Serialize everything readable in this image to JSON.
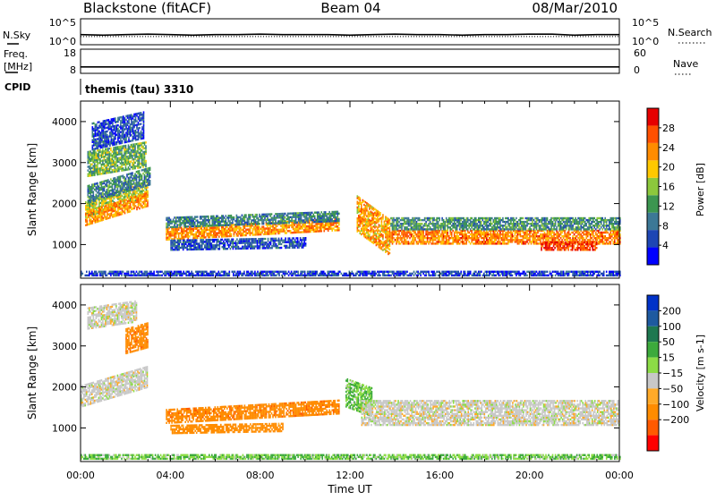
{
  "header": {
    "station": "Blackstone (fitACF)",
    "beam": "Beam 04",
    "date": "08/Mar/2010"
  },
  "cpid": {
    "label": "CPID",
    "text": "themis (tau) 3310"
  },
  "colors": {
    "power": [
      "#0000ff",
      "#1e46b4",
      "#3c7896",
      "#3c9650",
      "#8cc83c",
      "#ffc800",
      "#ff8c00",
      "#ff5000",
      "#e60000"
    ],
    "velocity": [
      "#ff0000",
      "#ff5a00",
      "#ff8c00",
      "#ffaa28",
      "#c8c8c8",
      "#8cdc46",
      "#3caa3c",
      "#1e7850",
      "#1e5aa0",
      "#0032c8"
    ]
  },
  "chart_data": [
    {
      "type": "line",
      "name": "noise",
      "ylabel_left": "N.Sky",
      "ylabel_right": "N.Search",
      "yticks_left": [
        "10^5",
        "10^0"
      ],
      "yticks_right": [
        "10^5",
        "10^0"
      ],
      "ylim": [
        0,
        5
      ],
      "x": [
        0,
        1,
        2,
        3,
        4,
        5,
        6,
        7,
        8,
        9,
        10,
        11,
        12,
        13,
        14,
        15,
        16,
        17,
        18,
        19,
        20,
        21,
        22,
        23,
        24
      ],
      "sky": [
        1.9,
        1.8,
        1.9,
        2.0,
        1.9,
        1.8,
        1.9,
        1.9,
        2.0,
        1.9,
        1.9,
        1.9,
        1.8,
        1.9,
        2.0,
        1.9,
        1.9,
        1.8,
        1.9,
        1.9,
        2.0,
        2.0,
        1.8,
        1.9,
        1.9
      ],
      "search": [
        1.5,
        1.5,
        1.5,
        1.5,
        1.5,
        1.5,
        1.5,
        1.5,
        1.5,
        1.5,
        1.5,
        1.5,
        1.5,
        1.5,
        1.5,
        1.5,
        1.5,
        1.5,
        1.5,
        1.5,
        1.5,
        1.5,
        1.5,
        1.5,
        1.5
      ]
    },
    {
      "type": "line",
      "name": "frequency",
      "ylabel_left": "Freq.",
      "ylabel_left2": "[MHz]",
      "ylabel_right": "Nave",
      "yticks_left": [
        "18",
        "8"
      ],
      "yticks_right": [
        "60",
        "0"
      ],
      "ylim_left": [
        8,
        18
      ],
      "x": [
        0,
        1,
        2,
        3,
        4,
        5,
        6,
        7,
        8,
        9,
        10,
        11,
        12,
        13,
        14,
        15,
        16,
        17,
        18,
        19,
        20,
        21,
        22,
        23,
        24
      ],
      "freq": [
        10.5,
        10.5,
        10.5,
        10.5,
        10.5,
        10.5,
        10.5,
        10.5,
        10.5,
        10.5,
        10.5,
        10.5,
        10.5,
        10.5,
        10.5,
        10.5,
        10.5,
        10.5,
        10.5,
        10.5,
        10.5,
        10.5,
        10.5,
        10.5,
        10.5
      ]
    },
    {
      "type": "heatmap",
      "name": "power",
      "ylabel": "Slant Range [km]",
      "yticks": [
        1000,
        2000,
        3000,
        4000
      ],
      "ylim": [
        180,
        4500
      ],
      "xlim": [
        0,
        24
      ],
      "colorbar": {
        "label": "Power [dB]",
        "ticks": [
          4,
          8,
          12,
          16,
          20,
          24,
          28
        ],
        "range": [
          0,
          32
        ]
      },
      "regions": [
        {
          "t": [
            0.2,
            3.0
          ],
          "r0": 1650,
          "r1": 2050,
          "slope": 180,
          "v": 17
        },
        {
          "t": [
            0.2,
            3.0
          ],
          "r0": 1450,
          "r1": 1800,
          "slope": 170,
          "v": 23
        },
        {
          "t": [
            0.3,
            3.1
          ],
          "r0": 2000,
          "r1": 2450,
          "slope": 160,
          "v": 10
        },
        {
          "t": [
            0.3,
            2.9
          ],
          "r0": 2650,
          "r1": 3250,
          "slope": 90,
          "v": 14
        },
        {
          "t": [
            0.5,
            2.8
          ],
          "r0": 3300,
          "r1": 3950,
          "slope": 120,
          "v": 6
        },
        {
          "t": [
            3.8,
            11.5
          ],
          "r0": 1100,
          "r1": 1400,
          "slope": 30,
          "v": 23
        },
        {
          "t": [
            3.8,
            11.5
          ],
          "r0": 1400,
          "r1": 1650,
          "slope": 20,
          "v": 10
        },
        {
          "t": [
            4.0,
            10.0
          ],
          "r0": 850,
          "r1": 1100,
          "slope": 10,
          "v": 6
        },
        {
          "t": [
            12.3,
            13.8
          ],
          "r0": 1300,
          "r1": 2200,
          "slope": -400,
          "v": 22
        },
        {
          "t": [
            13.8,
            24.0
          ],
          "r0": 1000,
          "r1": 1350,
          "slope": 0,
          "v": 24
        },
        {
          "t": [
            13.8,
            24.0
          ],
          "r0": 1350,
          "r1": 1650,
          "slope": 0,
          "v": 11
        },
        {
          "t": [
            20.5,
            23.0
          ],
          "r0": 850,
          "r1": 1050,
          "slope": 0,
          "v": 28
        },
        {
          "t": [
            0.0,
            24.0
          ],
          "r0": 180,
          "r1": 330,
          "slope": 0,
          "v": 5
        }
      ]
    },
    {
      "type": "heatmap",
      "name": "velocity",
      "ylabel": "Slant Range [km]",
      "yticks": [
        1000,
        2000,
        3000,
        4000
      ],
      "ylim": [
        180,
        4500
      ],
      "xlim": [
        0,
        24
      ],
      "xticks": [
        "00:00",
        "04:00",
        "08:00",
        "12:00",
        "16:00",
        "20:00",
        "00:00"
      ],
      "xlabel": "Time UT",
      "colorbar": {
        "label": "Velocity [m s-1]",
        "ticks": [
          "200",
          "100",
          "50",
          "15",
          "−15",
          "−50",
          "−100",
          "−200"
        ]
      },
      "regions": [
        {
          "t": [
            0.0,
            3.0
          ],
          "r0": 1500,
          "r1": 2000,
          "slope": 160,
          "v": 0
        },
        {
          "t": [
            2.0,
            3.0
          ],
          "r0": 2800,
          "r1": 3400,
          "slope": 150,
          "v": -60
        },
        {
          "t": [
            0.3,
            2.5
          ],
          "r0": 3400,
          "r1": 3900,
          "slope": 80,
          "v": 0
        },
        {
          "t": [
            3.8,
            11.5
          ],
          "r0": 1100,
          "r1": 1450,
          "slope": 30,
          "v": -60
        },
        {
          "t": [
            4.0,
            9.0
          ],
          "r0": 850,
          "r1": 1050,
          "slope": 10,
          "v": -50
        },
        {
          "t": [
            11.8,
            13.0
          ],
          "r0": 1500,
          "r1": 2200,
          "slope": -200,
          "v": 30
        },
        {
          "t": [
            12.5,
            24.0
          ],
          "r0": 1050,
          "r1": 1650,
          "slope": 0,
          "v": 0
        },
        {
          "t": [
            0.0,
            24.0
          ],
          "r0": 180,
          "r1": 320,
          "slope": 0,
          "v": 30
        }
      ]
    }
  ]
}
